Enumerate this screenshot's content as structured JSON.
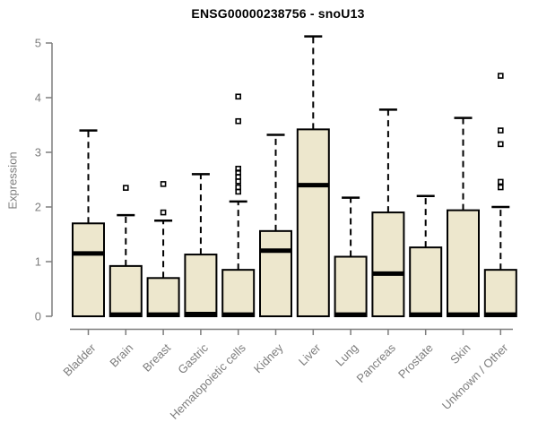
{
  "title": "ENSG00000238756 - snoU13",
  "colors": {
    "background": "#ffffff",
    "box_fill": "#EDE7CD",
    "box_border": "#000000",
    "median": "#000000",
    "whisker": "#000000",
    "outlier": "#000000",
    "axis": "#7d7d7d",
    "tick_label": "#7d7d7d",
    "title": "#000000"
  },
  "chart_data": {
    "type": "boxplot",
    "title": "ENSG00000238756 - snoU13",
    "xlabel": "",
    "ylabel": "Expression",
    "ylim": [
      0,
      5.3
    ],
    "yticks": [
      0,
      1,
      2,
      3,
      4,
      5
    ],
    "grid": false,
    "legend": "none",
    "x_tick_rotation_deg": 45,
    "categories": [
      "Bladder",
      "Brain",
      "Breast",
      "Gastric",
      "Hematopoietic cells",
      "Kidney",
      "Liver",
      "Lung",
      "Pancreas",
      "Prostate",
      "Skin",
      "Unknown / Other"
    ],
    "boxes": [
      {
        "category": "Bladder",
        "q1": 0,
        "median": 1.15,
        "q3": 1.7,
        "whisker_low": 0,
        "whisker_high": 3.4,
        "outliers": []
      },
      {
        "category": "Brain",
        "q1": 0,
        "median": 0.03,
        "q3": 0.92,
        "whisker_low": 0,
        "whisker_high": 1.85,
        "outliers": [
          2.35
        ]
      },
      {
        "category": "Breast",
        "q1": 0,
        "median": 0.03,
        "q3": 0.7,
        "whisker_low": 0,
        "whisker_high": 1.75,
        "outliers": [
          1.9,
          2.42
        ]
      },
      {
        "category": "Gastric",
        "q1": 0,
        "median": 0.04,
        "q3": 1.13,
        "whisker_low": 0,
        "whisker_high": 2.6,
        "outliers": []
      },
      {
        "category": "Hematopoietic cells",
        "q1": 0,
        "median": 0.03,
        "q3": 0.85,
        "whisker_low": 0,
        "whisker_high": 2.1,
        "outliers": [
          2.28,
          2.36,
          2.47,
          2.55,
          2.63,
          2.7,
          3.57,
          4.02
        ]
      },
      {
        "category": "Kidney",
        "q1": 0,
        "median": 1.2,
        "q3": 1.56,
        "whisker_low": 0,
        "whisker_high": 3.32,
        "outliers": []
      },
      {
        "category": "Liver",
        "q1": 0,
        "median": 2.4,
        "q3": 3.42,
        "whisker_low": 0,
        "whisker_high": 5.12,
        "outliers": []
      },
      {
        "category": "Lung",
        "q1": 0,
        "median": 0.03,
        "q3": 1.09,
        "whisker_low": 0,
        "whisker_high": 2.17,
        "outliers": []
      },
      {
        "category": "Pancreas",
        "q1": 0,
        "median": 0.78,
        "q3": 1.9,
        "whisker_low": 0,
        "whisker_high": 3.78,
        "outliers": []
      },
      {
        "category": "Prostate",
        "q1": 0,
        "median": 0.03,
        "q3": 1.26,
        "whisker_low": 0,
        "whisker_high": 2.2,
        "outliers": []
      },
      {
        "category": "Skin",
        "q1": 0,
        "median": 0.03,
        "q3": 1.94,
        "whisker_low": 0,
        "whisker_high": 3.63,
        "outliers": []
      },
      {
        "category": "Unknown / Other",
        "q1": 0,
        "median": 0.03,
        "q3": 0.85,
        "whisker_low": 0,
        "whisker_high": 2.0,
        "outliers": [
          2.36,
          2.46,
          3.15,
          3.4,
          4.4
        ]
      }
    ]
  }
}
